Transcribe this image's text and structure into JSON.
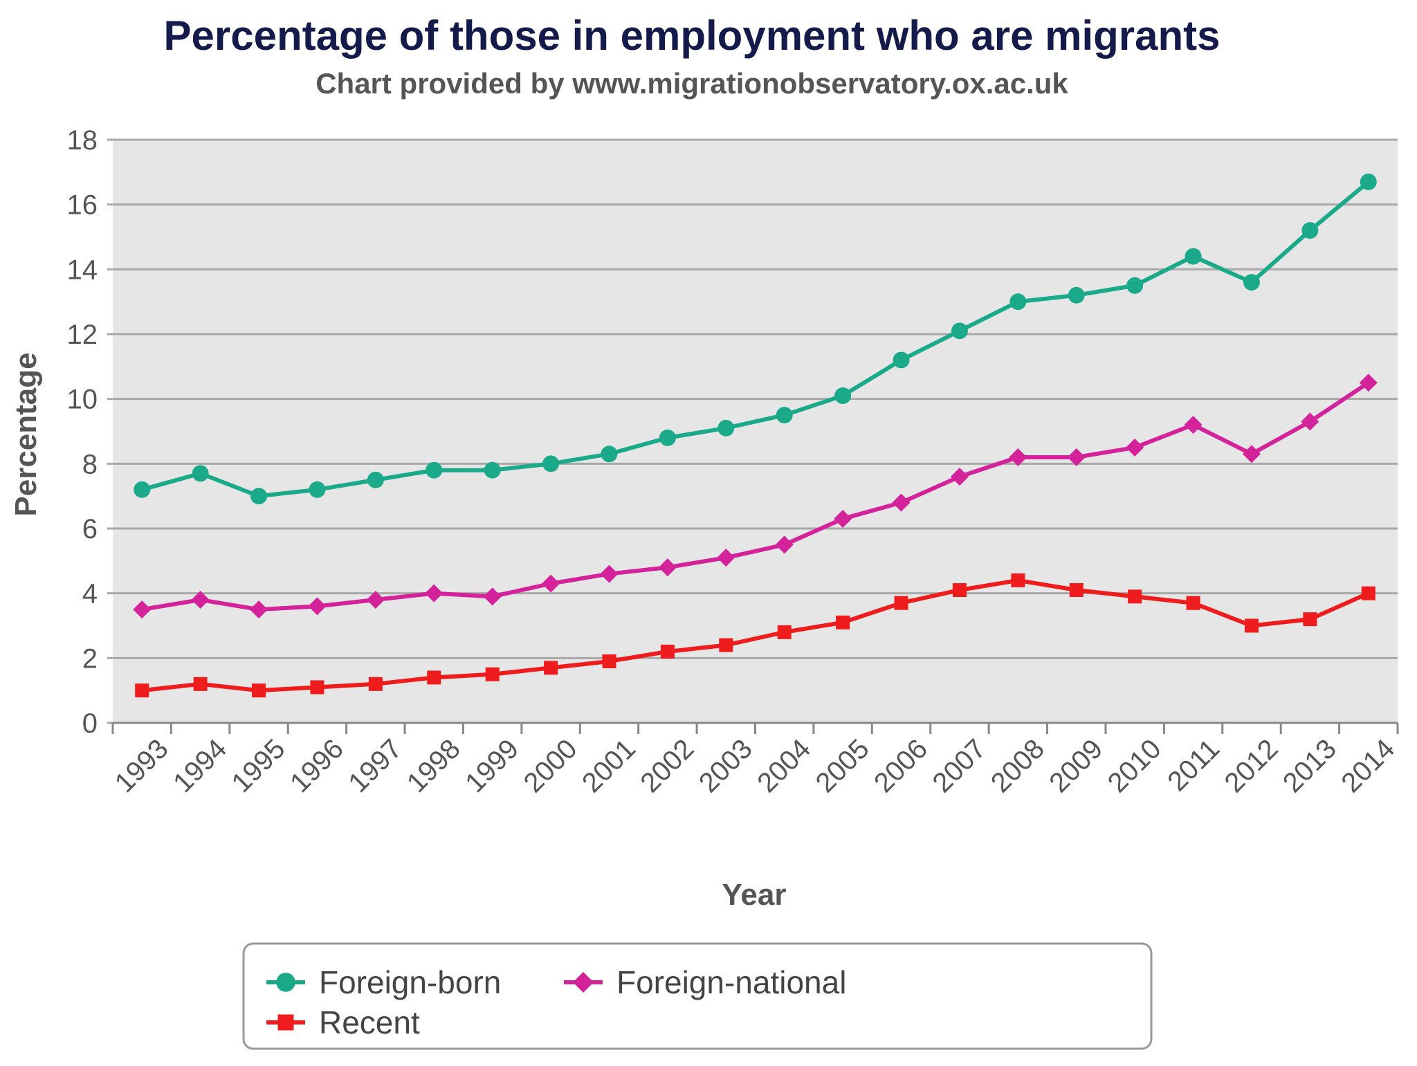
{
  "chart_data": {
    "type": "line",
    "title": "Percentage of those in employment who are migrants",
    "subtitle": "Chart provided by www.migrationobservatory.ox.ac.uk",
    "xlabel": "Year",
    "ylabel": "Percentage",
    "ylim": [
      0,
      18
    ],
    "yticks": [
      "0",
      "2",
      "4",
      "6",
      "8",
      "10",
      "12",
      "14",
      "16",
      "18"
    ],
    "grid": true,
    "legend_position": "bottom",
    "categories": [
      "1993",
      "1994",
      "1995",
      "1996",
      "1997",
      "1998",
      "1999",
      "2000",
      "2001",
      "2002",
      "2003",
      "2004",
      "2005",
      "2006",
      "2007",
      "2008",
      "2009",
      "2010",
      "2011",
      "2012",
      "2013",
      "2014"
    ],
    "series": [
      {
        "name": "Foreign-born",
        "color": "#1aaa8a",
        "marker": "circle",
        "values": [
          7.2,
          7.7,
          7.0,
          7.2,
          7.5,
          7.8,
          7.8,
          8.0,
          8.3,
          8.8,
          9.1,
          9.5,
          10.1,
          11.2,
          12.1,
          13.0,
          13.2,
          13.5,
          14.4,
          13.6,
          15.2,
          16.7
        ]
      },
      {
        "name": "Foreign-national",
        "color": "#d4239a",
        "marker": "diamond",
        "values": [
          3.5,
          3.8,
          3.5,
          3.6,
          3.8,
          4.0,
          3.9,
          4.3,
          4.6,
          4.8,
          5.1,
          5.5,
          6.3,
          6.8,
          7.6,
          8.2,
          8.2,
          8.5,
          9.2,
          8.3,
          9.3,
          10.5
        ]
      },
      {
        "name": "Recent",
        "color": "#ee1c1c",
        "marker": "square",
        "values": [
          1.0,
          1.2,
          1.0,
          1.1,
          1.2,
          1.4,
          1.5,
          1.7,
          1.9,
          2.2,
          2.4,
          2.8,
          3.1,
          3.7,
          4.1,
          4.4,
          4.1,
          3.9,
          3.7,
          3.0,
          3.2,
          4.0
        ]
      }
    ]
  }
}
